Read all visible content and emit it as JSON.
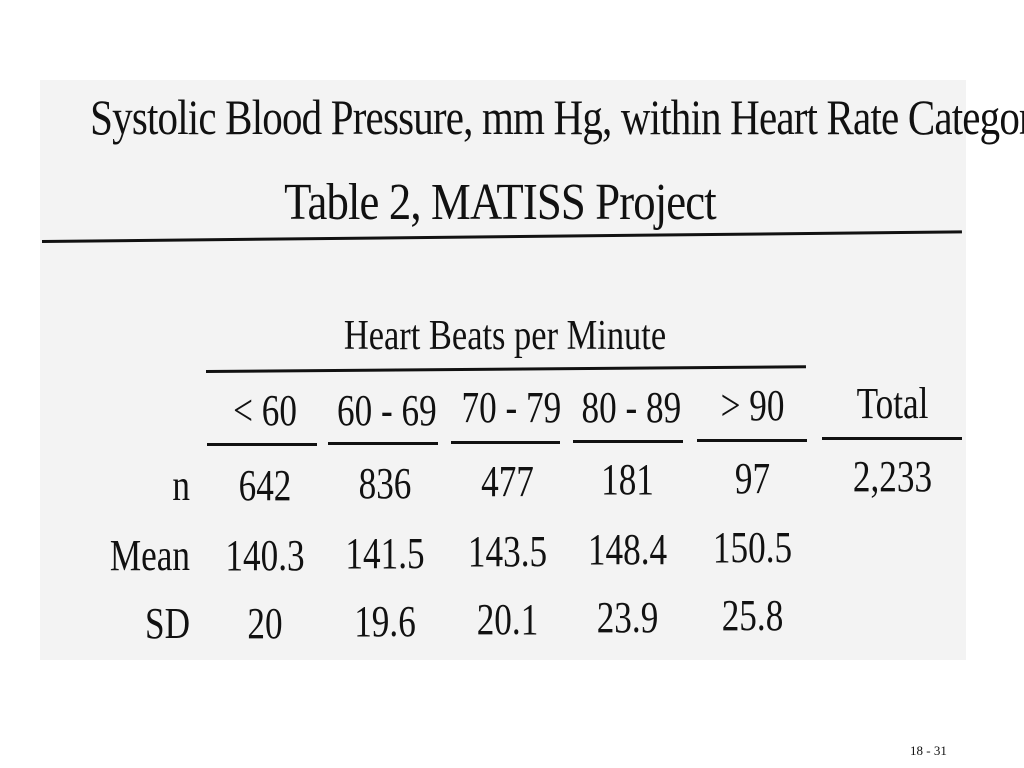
{
  "slide": {
    "title_line1": "Systolic Blood Pressure, mm Hg, within Heart Rate Categories",
    "title_line2": "Table 2, MATISS Project",
    "page_number": "18 - 31"
  },
  "table": {
    "group_header": "Heart Beats per Minute",
    "columns": [
      "< 60",
      "60 - 69",
      "70 - 79",
      "80 - 89",
      "> 90",
      "Total"
    ],
    "rows": [
      {
        "label": "n",
        "values": [
          "642",
          "836",
          "477",
          "181",
          "97",
          "2,233"
        ]
      },
      {
        "label": "Mean",
        "values": [
          "140.3",
          "141.5",
          "143.5",
          "148.4",
          "150.5",
          ""
        ]
      },
      {
        "label": "SD",
        "values": [
          "20",
          "19.6",
          "20.1",
          "23.9",
          "25.8",
          ""
        ]
      }
    ]
  }
}
